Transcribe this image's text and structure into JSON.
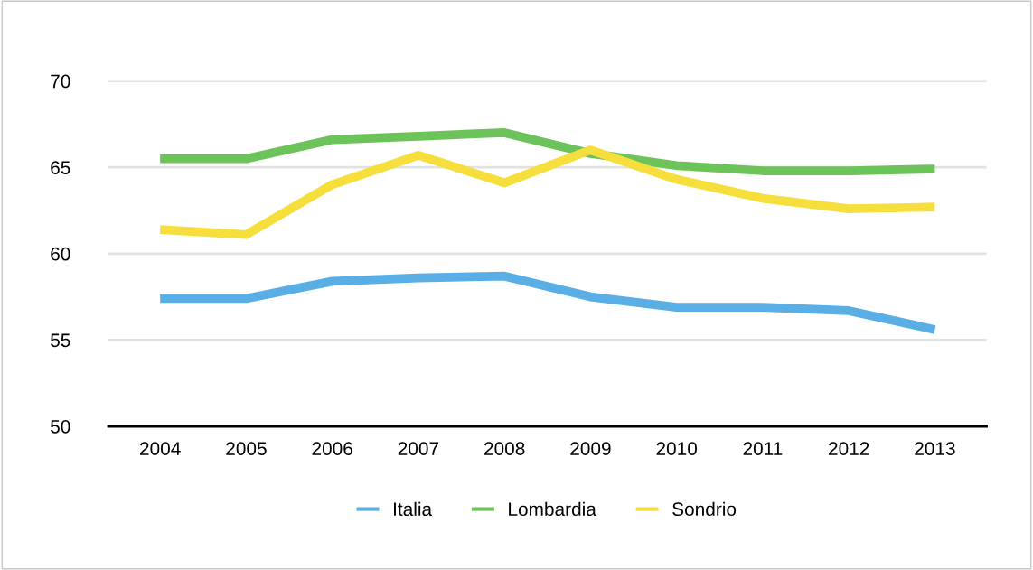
{
  "chart_data": {
    "type": "line",
    "categories": [
      "2004",
      "2005",
      "2006",
      "2007",
      "2008",
      "2009",
      "2010",
      "2011",
      "2012",
      "2013"
    ],
    "series": [
      {
        "name": "Italia",
        "color": "#5aaee6",
        "values": [
          57.4,
          57.4,
          58.4,
          58.6,
          58.7,
          57.5,
          56.9,
          56.9,
          56.7,
          55.6
        ]
      },
      {
        "name": "Lombardia",
        "color": "#6cc35a",
        "values": [
          65.5,
          65.5,
          66.6,
          66.8,
          67.0,
          65.8,
          65.1,
          64.8,
          64.8,
          64.9
        ]
      },
      {
        "name": "Sondrio",
        "color": "#f6df3c",
        "values": [
          61.4,
          61.1,
          64.0,
          65.7,
          64.1,
          66.0,
          64.3,
          63.2,
          62.6,
          62.7
        ]
      }
    ],
    "ylim": [
      50,
      70
    ],
    "yticks": [
      50,
      55,
      60,
      65,
      70
    ],
    "grid": "y",
    "legend": "bottom",
    "marker": "none",
    "line_style": "solid"
  }
}
